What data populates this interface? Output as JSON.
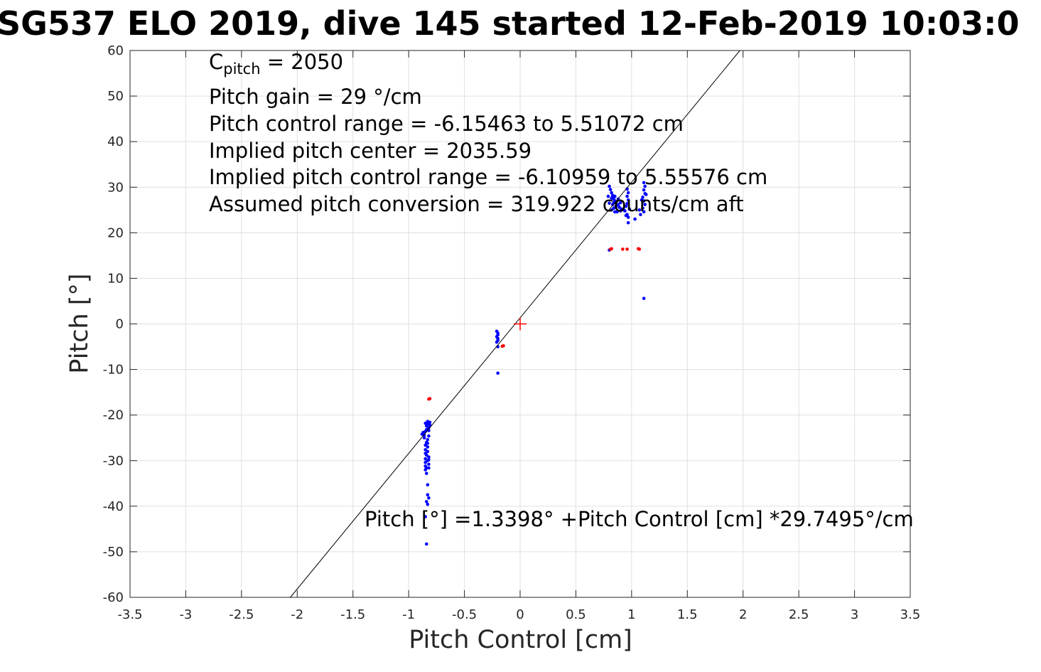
{
  "title": "SG537 ELO 2019, dive 145 started 12-Feb-2019 10:03:0",
  "annotations": {
    "cpitch_symbol": "C",
    "cpitch_sub": "pitch",
    "cpitch_value": " = 2050",
    "line2": "Pitch gain = 29 °/cm",
    "line3": "Pitch control range = -6.15463 to 5.51072 cm",
    "line4": "Implied pitch center = 2035.59",
    "line5": "Implied pitch control range = -6.10959 to 5.55576 cm",
    "line6": "Assumed pitch conversion = 319.922 counts/cm aft",
    "fit": "Pitch [°] =1.3398° +Pitch Control [cm] *29.7495°/cm"
  },
  "chart_data": {
    "type": "scatter",
    "xlabel": "Pitch Control [cm]",
    "ylabel": "Pitch [°]",
    "xlim": [
      -3.5,
      3.5
    ],
    "ylim": [
      -60,
      60
    ],
    "xticks": [
      -3.5,
      -3,
      -2.5,
      -2,
      -1.5,
      -1,
      -0.5,
      0,
      0.5,
      1,
      1.5,
      2,
      2.5,
      3,
      3.5
    ],
    "yticks": [
      -60,
      -50,
      -40,
      -30,
      -20,
      -10,
      0,
      10,
      20,
      30,
      40,
      50,
      60
    ],
    "grid": true,
    "fit_line": {
      "intercept": 1.3398,
      "slope": 29.7495,
      "color": "#000000"
    },
    "center_marker": {
      "x": 0,
      "y": 0,
      "color": "#ff0000"
    },
    "series": [
      {
        "color": "#0000ff",
        "points": [
          [
            -0.84,
            -48.3
          ],
          [
            -0.85,
            -42.3
          ],
          [
            -0.83,
            -39.6
          ],
          [
            -0.84,
            -39.0
          ],
          [
            -0.82,
            -38.2
          ],
          [
            -0.83,
            -37.5
          ],
          [
            -0.83,
            -35.3
          ],
          [
            -0.84,
            -32.8
          ],
          [
            -0.85,
            -32.0
          ],
          [
            -0.82,
            -31.6
          ],
          [
            -0.85,
            -31.2
          ],
          [
            -0.82,
            -30.8
          ],
          [
            -0.85,
            -30.4
          ],
          [
            -0.83,
            -30.0
          ],
          [
            -0.85,
            -29.6
          ],
          [
            -0.82,
            -29.2
          ],
          [
            -0.84,
            -28.8
          ],
          [
            -0.85,
            -28.4
          ],
          [
            -0.83,
            -28.0
          ],
          [
            -0.85,
            -27.6
          ],
          [
            -0.83,
            -27.0
          ],
          [
            -0.85,
            -26.6
          ],
          [
            -0.84,
            -26.0
          ],
          [
            -0.83,
            -25.4
          ],
          [
            -0.86,
            -25.0
          ],
          [
            -0.82,
            -24.6
          ],
          [
            -0.88,
            -24.2
          ],
          [
            -0.87,
            -23.8
          ],
          [
            -0.85,
            -23.6
          ],
          [
            -0.84,
            -23.2
          ],
          [
            -0.82,
            -22.8
          ],
          [
            -0.84,
            -22.4
          ],
          [
            -0.83,
            -22.0
          ],
          [
            -0.81,
            -22.2
          ],
          [
            -0.85,
            -21.8
          ],
          [
            -0.83,
            -21.4
          ],
          [
            -0.81,
            -21.6
          ],
          [
            -0.82,
            -23.4
          ],
          [
            -0.86,
            -24.4
          ],
          [
            -0.83,
            -26.2
          ],
          [
            -0.82,
            -29.8
          ],
          [
            -0.84,
            -31.6
          ],
          [
            -0.2,
            -10.8
          ],
          [
            -0.2,
            -5.0
          ],
          [
            -0.21,
            -4.0
          ],
          [
            -0.2,
            -3.6
          ],
          [
            -0.2,
            -3.2
          ],
          [
            -0.21,
            -2.8
          ],
          [
            -0.2,
            -2.4
          ],
          [
            -0.2,
            -2.0
          ],
          [
            -0.21,
            -1.6
          ],
          [
            1.11,
            5.6
          ],
          [
            0.8,
            16.2
          ],
          [
            1.03,
            23.0
          ],
          [
            0.97,
            22.2
          ],
          [
            0.95,
            23.8
          ],
          [
            0.93,
            25.0
          ],
          [
            0.9,
            24.8
          ],
          [
            0.8,
            30.2
          ],
          [
            0.81,
            29.5
          ],
          [
            0.82,
            28.8
          ],
          [
            0.83,
            28.2
          ],
          [
            0.79,
            28.0
          ],
          [
            0.82,
            27.6
          ],
          [
            0.84,
            27.4
          ],
          [
            0.85,
            27.0
          ],
          [
            0.86,
            26.8
          ],
          [
            0.88,
            27.4
          ],
          [
            0.8,
            26.5
          ],
          [
            0.83,
            26.2
          ],
          [
            0.86,
            25.8
          ],
          [
            0.84,
            25.4
          ],
          [
            0.82,
            25.0
          ],
          [
            0.85,
            24.6
          ],
          [
            0.88,
            26.2
          ],
          [
            0.9,
            26.6
          ],
          [
            0.87,
            24.6
          ],
          [
            0.94,
            24.8
          ],
          [
            0.96,
            24.0
          ],
          [
            0.97,
            23.4
          ],
          [
            0.96,
            29.6
          ],
          [
            0.97,
            28.8
          ],
          [
            0.96,
            28.0
          ],
          [
            0.97,
            27.2
          ],
          [
            0.96,
            26.4
          ],
          [
            0.95,
            25.8
          ],
          [
            0.98,
            25.2
          ],
          [
            1.11,
            31.0
          ],
          [
            1.12,
            30.2
          ],
          [
            1.11,
            29.4
          ],
          [
            1.12,
            28.6
          ],
          [
            1.1,
            27.8
          ],
          [
            1.11,
            27.0
          ],
          [
            1.12,
            26.2
          ],
          [
            1.1,
            25.4
          ],
          [
            1.11,
            24.6
          ],
          [
            1.08,
            24.0
          ],
          [
            1.07,
            25.0
          ],
          [
            1.09,
            27.2
          ],
          [
            1.13,
            28.4
          ],
          [
            0.84,
            26.6
          ],
          [
            0.83,
            27.8
          ],
          [
            0.89,
            25.6
          ],
          [
            0.91,
            25.2
          ],
          [
            0.85,
            28.0
          ]
        ]
      },
      {
        "color": "#ff0000",
        "points": [
          [
            -0.82,
            -16.5
          ],
          [
            -0.81,
            -16.4
          ],
          [
            -0.16,
            -4.9
          ],
          [
            -0.15,
            -4.8
          ],
          [
            0.81,
            16.4
          ],
          [
            0.82,
            16.5
          ],
          [
            0.92,
            16.4
          ],
          [
            0.96,
            16.4
          ],
          [
            1.07,
            16.4
          ],
          [
            1.06,
            16.5
          ]
        ]
      }
    ]
  }
}
